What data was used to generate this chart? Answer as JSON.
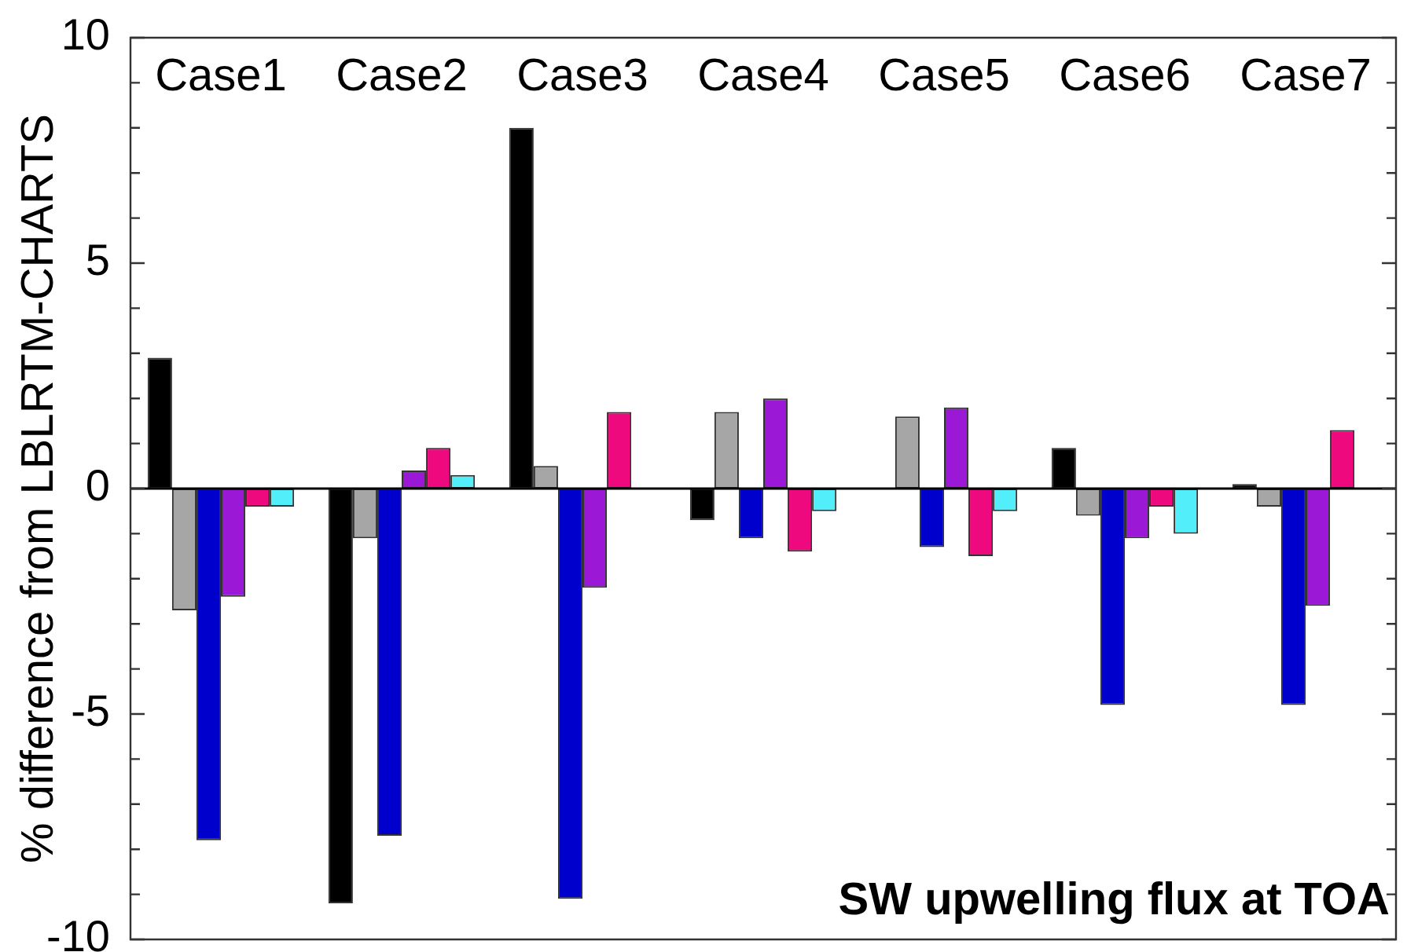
{
  "chart_data": {
    "type": "bar",
    "categories": [
      "Case1",
      "Case2",
      "Case3",
      "Case4",
      "Case5",
      "Case6",
      "Case7"
    ],
    "ylabel": "% difference from LBLRTM-CHARTS",
    "annotations": [
      "SW upwelling flux at TOA"
    ],
    "ylim": [
      -10,
      10
    ],
    "yticks": [
      -10,
      {
        "value": -9,
        "label": null
      },
      {
        "value": -8,
        "label": null
      },
      {
        "value": -7,
        "label": null
      },
      {
        "value": -6,
        "label": null
      },
      -5,
      {
        "value": -4,
        "label": null
      },
      {
        "value": -3,
        "label": null
      },
      {
        "value": -2,
        "label": null
      },
      {
        "value": -1,
        "label": null
      },
      0,
      {
        "value": 1,
        "label": null
      },
      {
        "value": 2,
        "label": null
      },
      {
        "value": 3,
        "label": null
      },
      {
        "value": 4,
        "label": null
      },
      5,
      {
        "value": 6,
        "label": null
      },
      {
        "value": 7,
        "label": null
      },
      {
        "value": 8,
        "label": null
      },
      {
        "value": 9,
        "label": null
      },
      10
    ],
    "series": [
      {
        "color": "#000000",
        "values": [
          2.9,
          -9.2,
          8.0,
          -0.7,
          null,
          0.9,
          0.1
        ]
      },
      {
        "color": "#a6a6a6",
        "values": [
          -2.7,
          -1.1,
          0.5,
          1.7,
          1.6,
          -0.6,
          -0.4
        ]
      },
      {
        "color": "#0000cc",
        "values": [
          -7.8,
          -7.7,
          -9.1,
          -1.1,
          -1.3,
          -4.8,
          -4.8
        ]
      },
      {
        "color": "#9a18d6",
        "values": [
          -2.4,
          0.4,
          -2.2,
          2.0,
          1.8,
          -1.1,
          -2.6
        ]
      },
      {
        "color": "#ee0a7e",
        "values": [
          -0.4,
          0.9,
          1.7,
          -1.4,
          -1.5,
          -0.4,
          1.3
        ]
      },
      {
        "color": "#52eefa",
        "values": [
          -0.4,
          0.3,
          null,
          -0.5,
          -0.5,
          -1.0,
          null
        ]
      }
    ]
  }
}
